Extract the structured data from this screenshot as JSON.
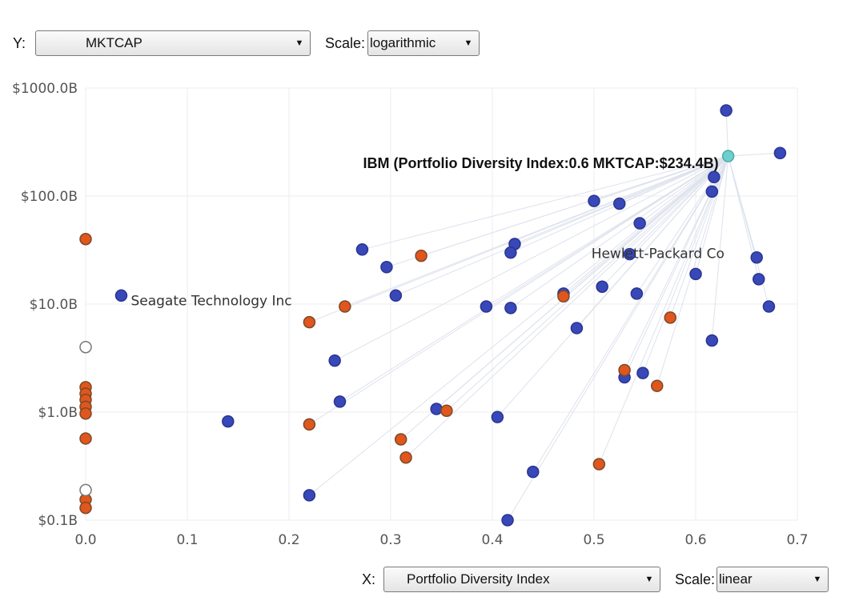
{
  "y_control": {
    "label": "Y:",
    "value": "MKTCAP",
    "scale_label": "Scale:",
    "scale_value": "logarithmic"
  },
  "x_control": {
    "label": "X:",
    "value": "Portfolio Diversity Index",
    "scale_label": "Scale:",
    "scale_value": "linear"
  },
  "chart_data": {
    "type": "scatter",
    "title": "",
    "xlabel": "Portfolio Diversity Index",
    "ylabel": "MKTCAP",
    "xlim": [
      0.0,
      0.7
    ],
    "ylim": [
      0.1,
      1000
    ],
    "x_scale": "linear",
    "y_scale": "logarithmic",
    "grid": true,
    "x_ticks": [
      "0.0",
      "0.1",
      "0.2",
      "0.3",
      "0.4",
      "0.5",
      "0.6",
      "0.7"
    ],
    "y_ticks": [
      "$0.1B",
      "$1.0B",
      "$10.0B",
      "$100.0B",
      "$1000.0B"
    ],
    "colors": {
      "blue": "#3848b8",
      "orange": "#e0561c",
      "white": "#ffffff",
      "teal": "#6fcfcf"
    },
    "series": [
      {
        "color": "blue",
        "points": [
          [
            0.63,
            620
          ],
          [
            0.683,
            250
          ],
          [
            0.618,
            150
          ],
          [
            0.616,
            110
          ],
          [
            0.5,
            90
          ],
          [
            0.525,
            85
          ],
          [
            0.545,
            56
          ],
          [
            0.422,
            36
          ],
          [
            0.418,
            30
          ],
          [
            0.535,
            29
          ],
          [
            0.272,
            32
          ],
          [
            0.296,
            22
          ],
          [
            0.66,
            27
          ],
          [
            0.6,
            19
          ],
          [
            0.662,
            17
          ],
          [
            0.035,
            12
          ],
          [
            0.305,
            12
          ],
          [
            0.394,
            9.5
          ],
          [
            0.418,
            9.2
          ],
          [
            0.47,
            12.5
          ],
          [
            0.508,
            14.5
          ],
          [
            0.542,
            12.5
          ],
          [
            0.672,
            9.5
          ],
          [
            0.483,
            6
          ],
          [
            0.616,
            4.6
          ],
          [
            0.245,
            3
          ],
          [
            0.53,
            2.1
          ],
          [
            0.548,
            2.3
          ],
          [
            0.25,
            1.25
          ],
          [
            0.14,
            0.82
          ],
          [
            0.345,
            1.07
          ],
          [
            0.405,
            0.9
          ],
          [
            0.44,
            0.28
          ],
          [
            0.22,
            0.17
          ],
          [
            0.415,
            0.1
          ]
        ]
      },
      {
        "color": "orange",
        "points": [
          [
            0.0,
            40
          ],
          [
            0.33,
            28
          ],
          [
            0.255,
            9.5
          ],
          [
            0.22,
            6.8
          ],
          [
            0.47,
            11.8
          ],
          [
            0.575,
            7.5
          ],
          [
            0.53,
            2.45
          ],
          [
            0.562,
            1.75
          ],
          [
            0.355,
            1.03
          ],
          [
            0.22,
            0.77
          ],
          [
            0.31,
            0.56
          ],
          [
            0.315,
            0.38
          ],
          [
            0.505,
            0.33
          ],
          [
            0.0,
            1.7
          ],
          [
            0.0,
            1.48
          ],
          [
            0.0,
            1.3
          ],
          [
            0.0,
            1.12
          ],
          [
            0.0,
            0.97
          ],
          [
            0.0,
            0.57
          ],
          [
            0.0,
            0.155
          ],
          [
            0.0,
            0.13
          ]
        ]
      },
      {
        "color": "white",
        "points": [
          [
            0.0,
            4.0
          ],
          [
            0.0,
            0.19
          ]
        ]
      },
      {
        "color": "teal",
        "points": [
          [
            0.632,
            234.4
          ]
        ]
      }
    ],
    "annotations": [
      {
        "text": "IBM (Portfolio Diversity Index:0.6 MKTCAP:$234.4B)",
        "x": 0.632,
        "y": 234.4,
        "style": "hover"
      },
      {
        "text": "Seagate Technology Inc",
        "x": 0.035,
        "y": 12
      },
      {
        "text": "Hewlett-Packard Co",
        "x": 0.618,
        "y": 29.5
      }
    ]
  }
}
